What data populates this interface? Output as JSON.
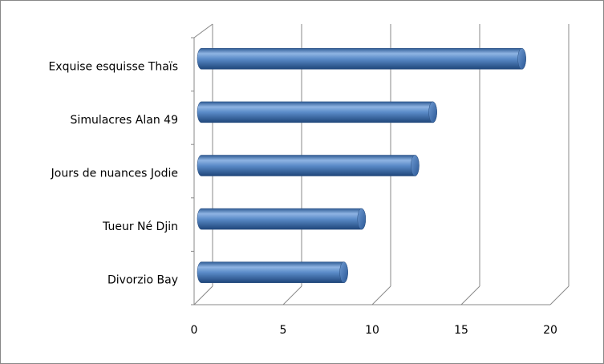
{
  "chart_data": {
    "type": "bar",
    "orientation": "horizontal",
    "categories": [
      "Exquise esquisse Thaïs",
      "Simulacres Alan 49",
      "Jours de nuances Jodie",
      "Tueur Né Djin",
      "Divorzio Bay"
    ],
    "values": [
      18,
      13,
      12,
      9,
      8
    ],
    "color": "#4f81bd",
    "xlim": [
      0,
      20
    ],
    "xticks": [
      0,
      5,
      10,
      15,
      20
    ],
    "grid": true
  }
}
